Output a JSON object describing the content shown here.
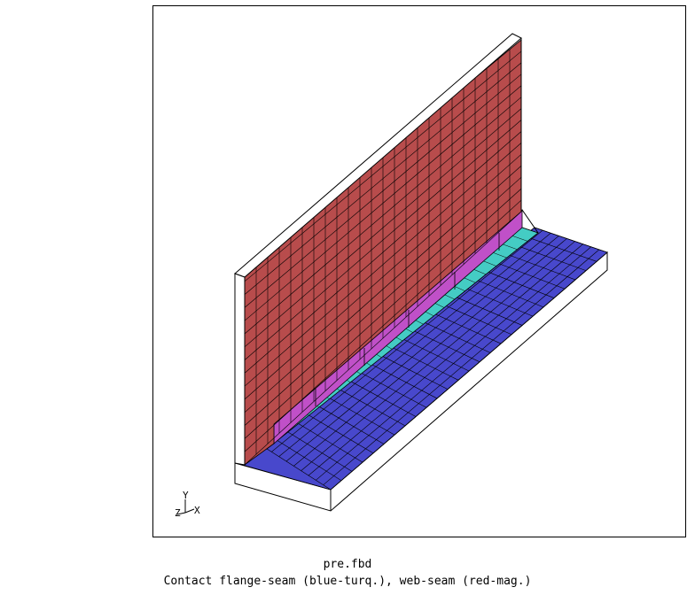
{
  "viewer": {
    "filename": "pre.fbd",
    "description": "Contact flange-seam (blue-turq.), web-seam (red-mag.)"
  },
  "axes_triad": {
    "y_label": "Y",
    "z_label": "Z",
    "x_label": "X"
  },
  "colors": {
    "web": "#b84c4c",
    "web_seam": "#c050c8",
    "flange_seam": "#44ccc4",
    "flange": "#4848cc",
    "outline": "#000000",
    "mesh": "#000000"
  },
  "mesh": {
    "web_columns": 24,
    "web_rows": 15,
    "flange_columns": 26,
    "flange_rows": 9
  }
}
